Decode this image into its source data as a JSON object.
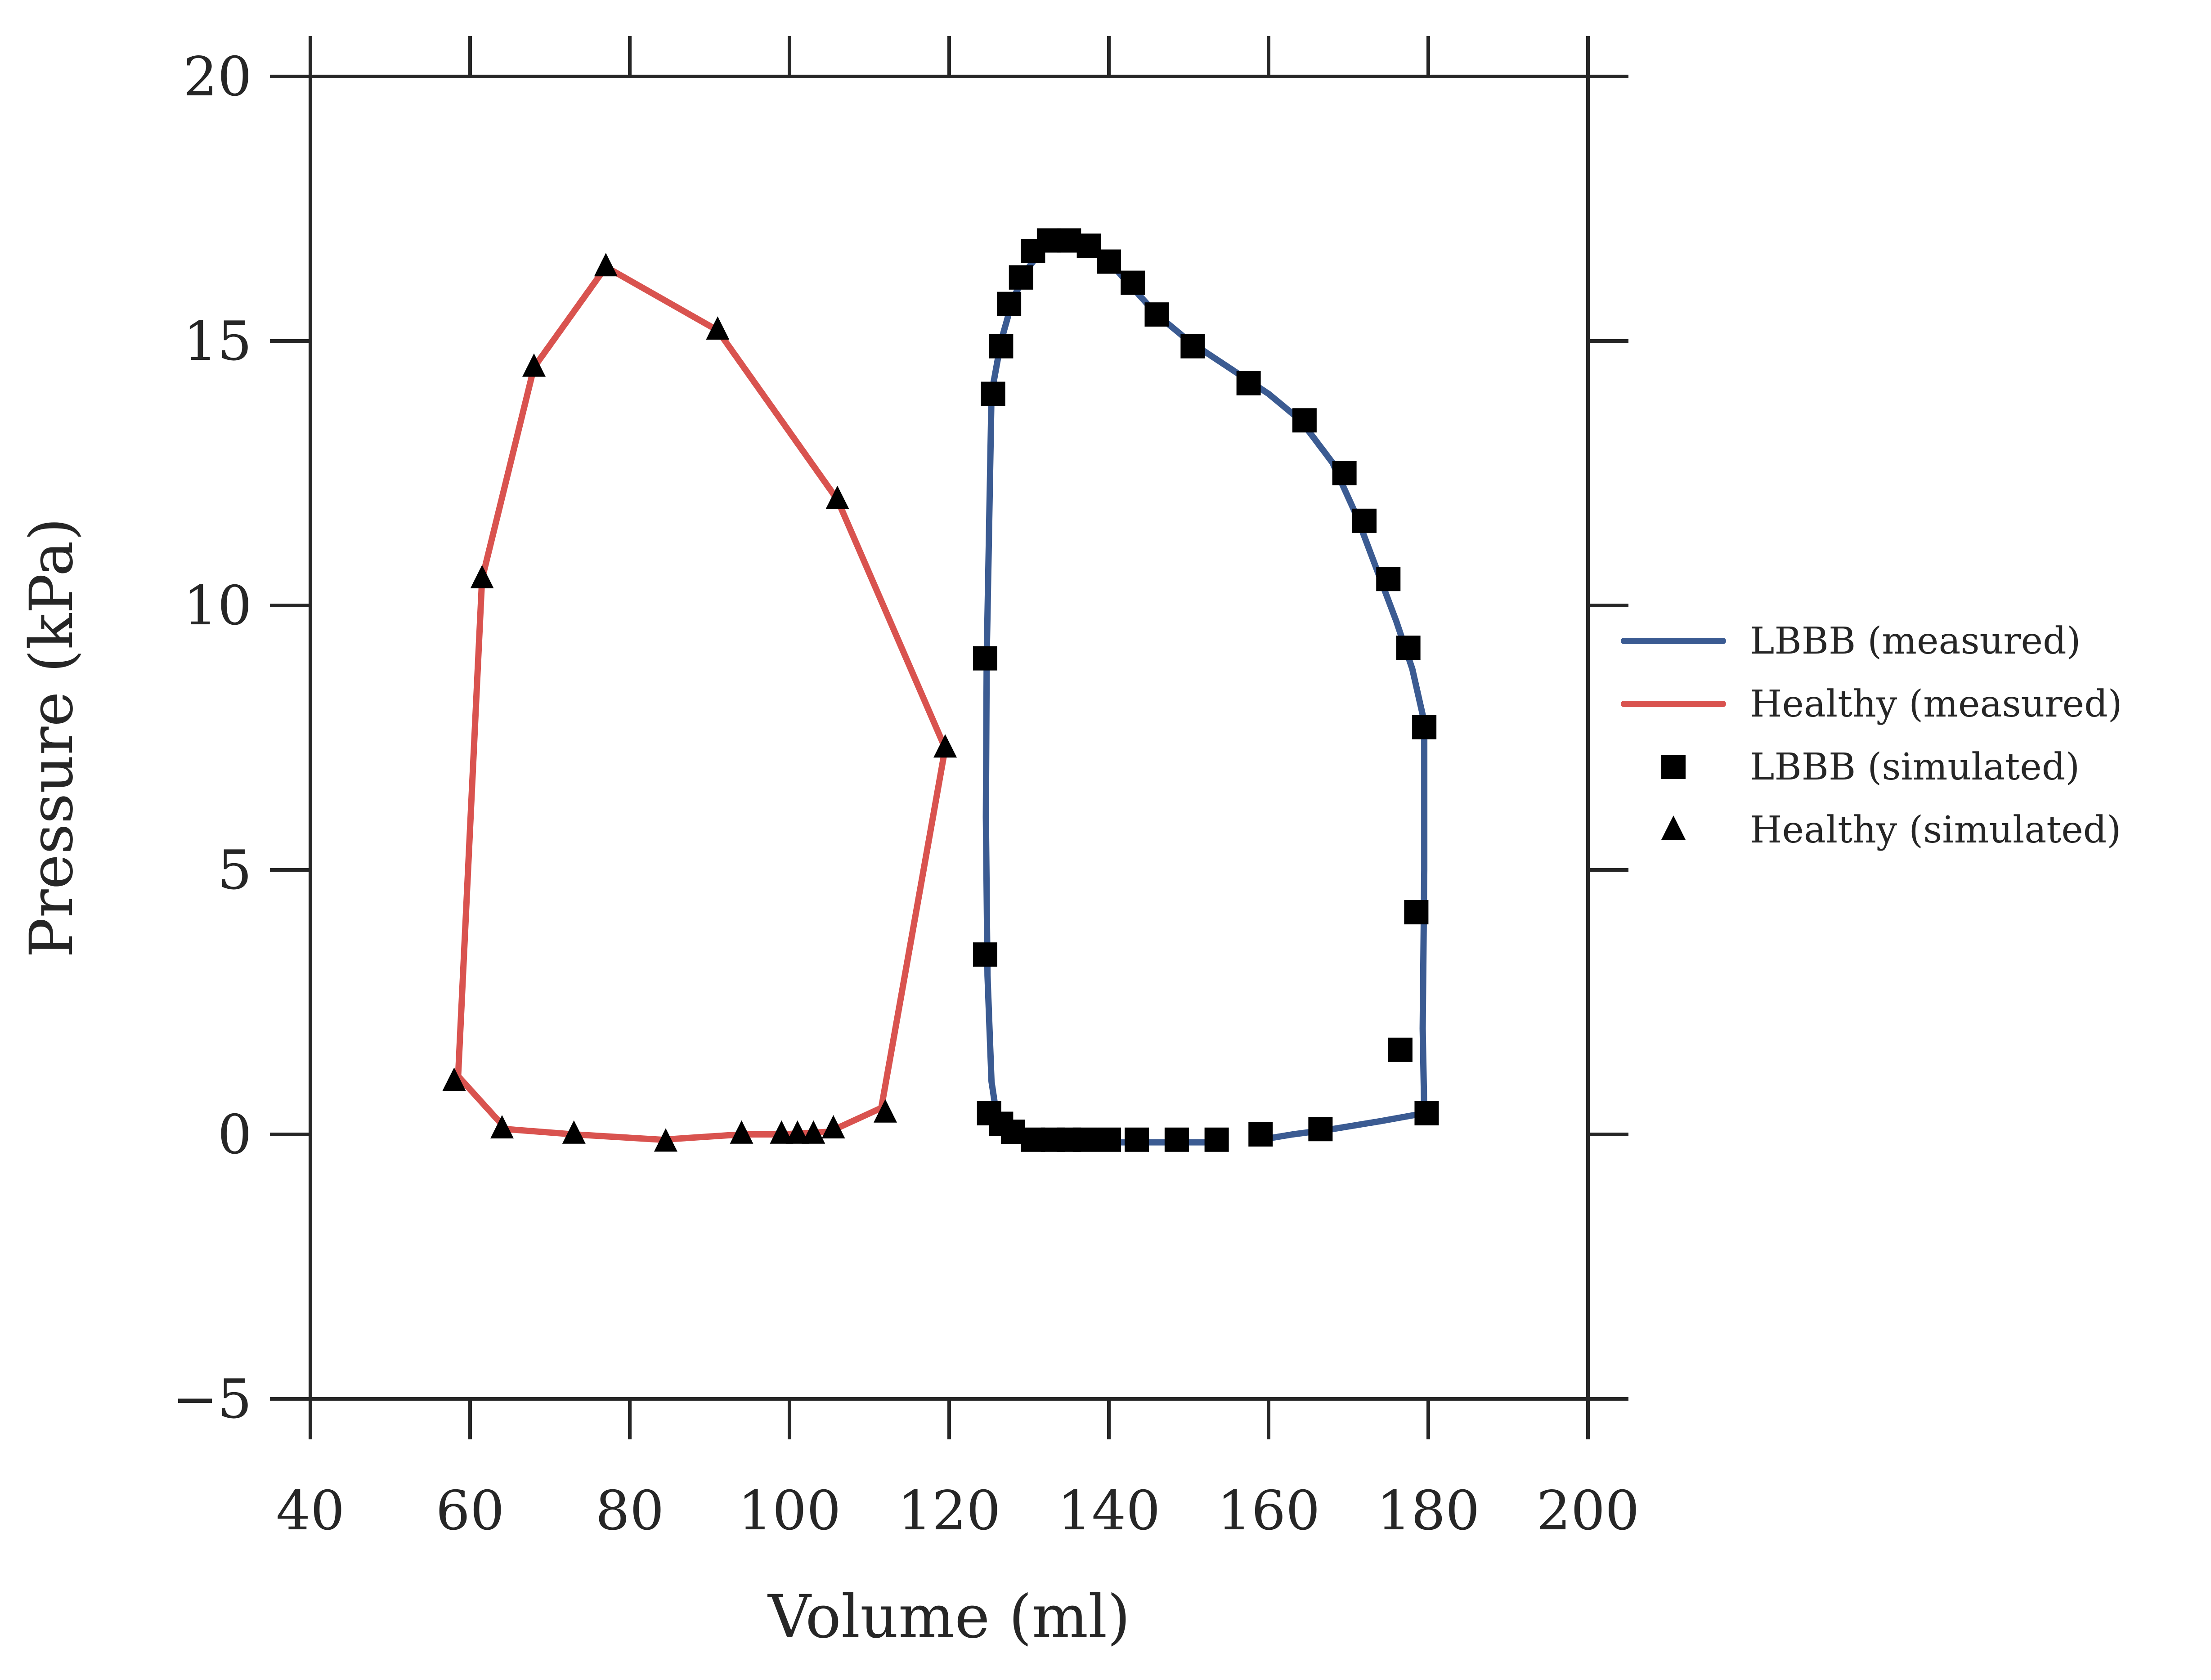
{
  "chart_data": {
    "type": "line",
    "title": "",
    "xlabel": "Volume (ml)",
    "ylabel": "Pressure (kPa)",
    "xlim": [
      40,
      200
    ],
    "ylim": [
      -5,
      20
    ],
    "xticks": [
      40,
      60,
      80,
      100,
      120,
      140,
      160,
      180,
      200
    ],
    "yticks": [
      -5,
      0,
      5,
      10,
      15,
      20
    ],
    "xtick_labels": [
      "40",
      "60",
      "80",
      "100",
      "120",
      "140",
      "160",
      "180",
      "200"
    ],
    "ytick_labels": [
      "−5",
      "0",
      "5",
      "10",
      "15",
      "20"
    ],
    "grid": false,
    "legend_position": "outside-right",
    "series": [
      {
        "name": "LBBB (measured)",
        "kind": "line",
        "color": "#3b5b92",
        "marker": "none",
        "points": [
          [
            154,
            -0.15
          ],
          [
            148,
            -0.15
          ],
          [
            142,
            -0.15
          ],
          [
            136,
            -0.15
          ],
          [
            131,
            -0.15
          ],
          [
            128,
            0.0
          ],
          [
            126,
            0.3
          ],
          [
            125.3,
            1.0
          ],
          [
            124.8,
            3.0
          ],
          [
            124.6,
            6.0
          ],
          [
            124.7,
            9.0
          ],
          [
            125,
            11.5
          ],
          [
            125.3,
            14.0
          ],
          [
            126.5,
            15.0
          ],
          [
            128,
            15.8
          ],
          [
            130,
            16.4
          ],
          [
            132,
            16.8
          ],
          [
            134,
            16.95
          ],
          [
            137,
            16.85
          ],
          [
            140,
            16.5
          ],
          [
            143,
            16.0
          ],
          [
            146,
            15.5
          ],
          [
            150,
            15.0
          ],
          [
            155,
            14.5
          ],
          [
            160,
            14.0
          ],
          [
            164,
            13.5
          ],
          [
            168,
            12.7
          ],
          [
            171,
            11.7
          ],
          [
            174,
            10.5
          ],
          [
            176,
            9.7
          ],
          [
            178,
            8.8
          ],
          [
            179.5,
            7.8
          ],
          [
            179.5,
            5.0
          ],
          [
            179.3,
            2.0
          ],
          [
            179.5,
            0.4
          ],
          [
            174,
            0.25
          ],
          [
            168,
            0.1
          ],
          [
            163,
            0.0
          ],
          [
            159,
            -0.1
          ]
        ]
      },
      {
        "name": "Healthy (measured)",
        "kind": "line",
        "color": "#d9534f",
        "marker": "none",
        "points": [
          [
            58.5,
            1.1
          ],
          [
            61.5,
            10.5
          ],
          [
            68,
            14.5
          ],
          [
            77,
            16.4
          ],
          [
            91,
            15.2
          ],
          [
            106,
            12.0
          ],
          [
            119.5,
            7.3
          ],
          [
            111.5,
            0.5
          ],
          [
            105,
            0.05
          ],
          [
            99,
            0.0
          ],
          [
            94,
            0.0
          ],
          [
            84,
            -0.1
          ],
          [
            73,
            0.0
          ],
          [
            64.5,
            0.1
          ],
          [
            58.5,
            1.1
          ]
        ]
      },
      {
        "name": "LBBB (simulated)",
        "kind": "scatter",
        "color": "#000000",
        "marker": "square",
        "points": [
          [
            125.5,
            14.0
          ],
          [
            124.5,
            9.0
          ],
          [
            124.5,
            3.4
          ],
          [
            125,
            0.4
          ],
          [
            126.5,
            0.2
          ],
          [
            128,
            0.05
          ],
          [
            130.5,
            -0.1
          ],
          [
            133,
            -0.1
          ],
          [
            135,
            -0.1
          ],
          [
            137,
            -0.1
          ],
          [
            140,
            -0.1
          ],
          [
            143.5,
            -0.1
          ],
          [
            148.5,
            -0.1
          ],
          [
            153.5,
            -0.1
          ],
          [
            159,
            0.0
          ],
          [
            166.5,
            0.1
          ],
          [
            179.8,
            0.4
          ],
          [
            176.5,
            1.6
          ],
          [
            178.5,
            4.2
          ],
          [
            179.5,
            7.7
          ],
          [
            177.5,
            9.2
          ],
          [
            175,
            10.5
          ],
          [
            172,
            11.6
          ],
          [
            169.5,
            12.5
          ],
          [
            164.5,
            13.5
          ],
          [
            157.5,
            14.2
          ],
          [
            150.5,
            14.9
          ],
          [
            146,
            15.5
          ],
          [
            143,
            16.1
          ],
          [
            140,
            16.5
          ],
          [
            137.5,
            16.8
          ],
          [
            135,
            16.9
          ],
          [
            132.5,
            16.9
          ],
          [
            130.5,
            16.7
          ],
          [
            129,
            16.2
          ],
          [
            127.5,
            15.7
          ],
          [
            126.5,
            14.9
          ]
        ]
      },
      {
        "name": "Healthy (simulated)",
        "kind": "scatter",
        "color": "#000000",
        "marker": "triangle",
        "points": [
          [
            58,
            1.0
          ],
          [
            61.5,
            10.5
          ],
          [
            68,
            14.5
          ],
          [
            77,
            16.4
          ],
          [
            91,
            15.2
          ],
          [
            106,
            12.0
          ],
          [
            119.5,
            7.3
          ],
          [
            112,
            0.4
          ],
          [
            105.5,
            0.1
          ],
          [
            103,
            0.0
          ],
          [
            101,
            0.0
          ],
          [
            99,
            0.0
          ],
          [
            94,
            0.0
          ],
          [
            84.5,
            -0.15
          ],
          [
            73,
            0.0
          ],
          [
            64,
            0.1
          ]
        ]
      }
    ]
  },
  "legend": {
    "items": [
      {
        "label": "LBBB (measured)",
        "kind": "line",
        "color": "#3b5b92"
      },
      {
        "label": "Healthy (measured)",
        "kind": "line",
        "color": "#d9534f"
      },
      {
        "label": "LBBB (simulated)",
        "kind": "square",
        "color": "#000000"
      },
      {
        "label": "Healthy (simulated)",
        "kind": "triangle",
        "color": "#000000"
      }
    ]
  }
}
